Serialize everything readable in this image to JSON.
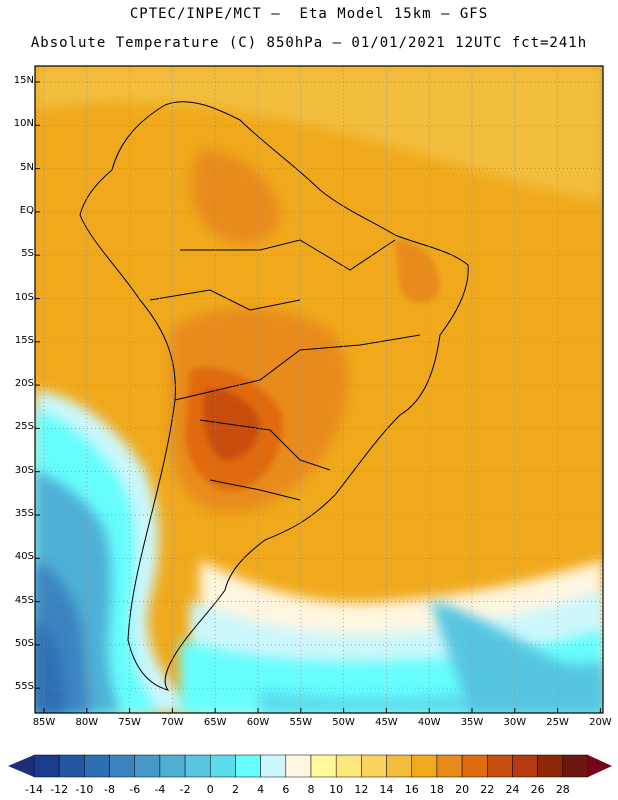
{
  "header": {
    "line1": "CPTEC/INPE/MCT –  Eta Model 15km – GFS",
    "line2": "Absolute Temperature (C) 850hPa – 01/01/2021 12UTC fct=241h"
  },
  "map": {
    "lat_labels": [
      "15N",
      "10N",
      "5N",
      "EQ",
      "5S",
      "10S",
      "15S",
      "20S",
      "25S",
      "30S",
      "35S",
      "40S",
      "45S",
      "50S",
      "55S"
    ],
    "lon_labels": [
      "85W",
      "80W",
      "75W",
      "70W",
      "65W",
      "60W",
      "55W",
      "50W",
      "45W",
      "40W",
      "35W",
      "30W",
      "25W",
      "20W"
    ],
    "field_highlights": [
      {
        "region": "Paraguay / northern Argentina",
        "value_range": "22 to 24"
      },
      {
        "region": "central Brazil interior",
        "value_range": "20 to 22"
      },
      {
        "region": "tropical Atlantic / northern continent",
        "value_range": "18 to 20"
      },
      {
        "region": "southern Patagonia / far south Pacific",
        "value_range": "-12 to -6"
      }
    ]
  },
  "colorbar": {
    "labels": [
      "-14",
      "-12",
      "-10",
      "-8",
      "-6",
      "-4",
      "-2",
      "0",
      "2",
      "4",
      "6",
      "8",
      "10",
      "12",
      "14",
      "16",
      "18",
      "20",
      "22",
      "24",
      "26",
      "28"
    ],
    "colors": [
      "#1b3b8f",
      "#2356a3",
      "#2f6eb3",
      "#3b84c0",
      "#4999c8",
      "#4fb0d6",
      "#57c6e0",
      "#5cdcec",
      "#66fdfd",
      "#ccf7fc",
      "#fff6e0",
      "#fff99b",
      "#fde77a",
      "#f9d35d",
      "#f2bd3c",
      "#f0a91c",
      "#e88b1c",
      "#e06a0f",
      "#c84e10",
      "#b23a0e",
      "#8e2608",
      "#6e1710"
    ],
    "under_color": "#1f2f77",
    "over_color": "#76051b"
  }
}
